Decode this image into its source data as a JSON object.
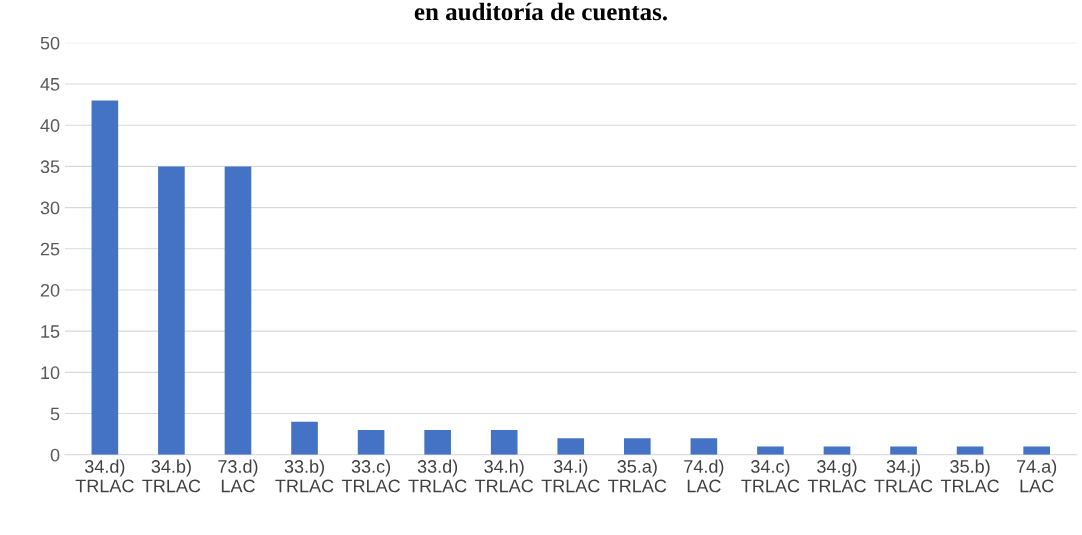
{
  "chart_data": {
    "type": "bar",
    "title": "en auditoría de cuentas.",
    "categories": [
      "34.d)\nTRLAC",
      "34.b)\nTRLAC",
      "73.d)\nLAC",
      "33.b)\nTRLAC",
      "33.c)\nTRLAC",
      "33.d)\nTRLAC",
      "34.h)\nTRLAC",
      "34.i)\nTRLAC",
      "35.a)\nTRLAC",
      "74.d)\nLAC",
      "34.c)\nTRLAC",
      "34.g)\nTRLAC",
      "34.j)\nTRLAC",
      "35.b)\nTRLAC",
      "74.a)\nLAC"
    ],
    "values": [
      43,
      35,
      35,
      4,
      3,
      3,
      3,
      2,
      2,
      2,
      1,
      1,
      1,
      1,
      1
    ],
    "color": "#4472c4",
    "ylim": [
      0,
      50
    ],
    "yticks": [
      0,
      5,
      10,
      15,
      20,
      25,
      30,
      35,
      40,
      45,
      50
    ],
    "grid": "y"
  }
}
